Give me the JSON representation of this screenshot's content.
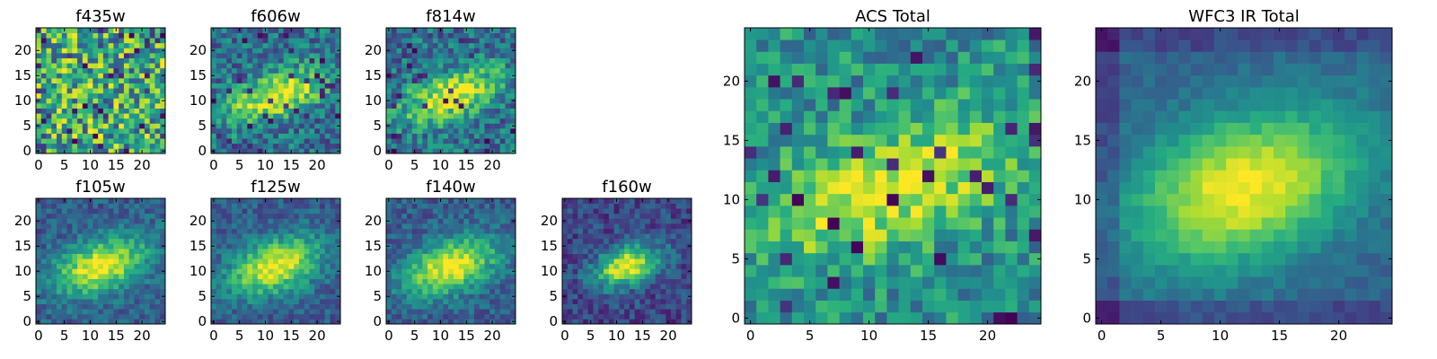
{
  "chart_data": [
    {
      "type": "heatmap",
      "title": "f435w",
      "xticks": [
        "0",
        "5",
        "10",
        "15",
        "20"
      ],
      "yticks": [
        "0",
        "5",
        "10",
        "15",
        "20"
      ],
      "xlim": [
        0,
        24
      ],
      "ylim": [
        0,
        24
      ],
      "grid": false,
      "colormap": "viridis",
      "values": "25x25 noisy flux image, mostly bright with scattered dark pixels"
    },
    {
      "type": "heatmap",
      "title": "f606w",
      "xticks": [
        "0",
        "5",
        "10",
        "15",
        "20"
      ],
      "yticks": [
        "0",
        "5",
        "10",
        "15",
        "20"
      ],
      "xlim": [
        0,
        24
      ],
      "ylim": [
        0,
        24
      ],
      "grid": false,
      "colormap": "viridis",
      "values": "25x25 flux image, diagonal bright band centered near (12, 11)"
    },
    {
      "type": "heatmap",
      "title": "f814w",
      "xticks": [
        "0",
        "5",
        "10",
        "15",
        "20"
      ],
      "yticks": [
        "0",
        "5",
        "10",
        "15",
        "20"
      ],
      "xlim": [
        0,
        24
      ],
      "ylim": [
        0,
        24
      ],
      "grid": false,
      "colormap": "viridis",
      "values": "25x25 flux image, diagonal bright band centered near (12, 11)"
    },
    {
      "type": "heatmap",
      "title": "f105w",
      "xticks": [
        "0",
        "5",
        "10",
        "15",
        "20"
      ],
      "yticks": [
        "0",
        "5",
        "10",
        "15",
        "20"
      ],
      "xlim": [
        0,
        24
      ],
      "ylim": [
        0,
        24
      ],
      "grid": false,
      "colormap": "viridis",
      "values": "25x25 flux image, bright elongated source centered near (12, 11)"
    },
    {
      "type": "heatmap",
      "title": "f125w",
      "xticks": [
        "0",
        "5",
        "10",
        "15",
        "20"
      ],
      "yticks": [
        "0",
        "5",
        "10",
        "15",
        "20"
      ],
      "xlim": [
        0,
        24
      ],
      "ylim": [
        0,
        24
      ],
      "grid": false,
      "colormap": "viridis",
      "values": "25x25 flux image, bright elongated source centered near (12, 11)"
    },
    {
      "type": "heatmap",
      "title": "f140w",
      "xticks": [
        "0",
        "5",
        "10",
        "15",
        "20"
      ],
      "yticks": [
        "0",
        "5",
        "10",
        "15",
        "20"
      ],
      "xlim": [
        0,
        24
      ],
      "ylim": [
        0,
        24
      ],
      "grid": false,
      "colormap": "viridis",
      "values": "25x25 flux image, bright elongated source centered near (12, 11)"
    },
    {
      "type": "heatmap",
      "title": "f160w",
      "xticks": [
        "0",
        "5",
        "10",
        "15",
        "20"
      ],
      "yticks": [
        "0",
        "5",
        "10",
        "15",
        "20"
      ],
      "xlim": [
        0,
        24
      ],
      "ylim": [
        0,
        24
      ],
      "grid": false,
      "colormap": "viridis",
      "values": "25x25 flux image, compact bright source centered near (12, 11)"
    },
    {
      "type": "heatmap",
      "title": "ACS Total",
      "xticks": [
        "0",
        "5",
        "10",
        "15",
        "20"
      ],
      "yticks": [
        "0",
        "5",
        "10",
        "15",
        "20"
      ],
      "xlim": [
        0,
        24
      ],
      "ylim": [
        0,
        24
      ],
      "grid": false,
      "colormap": "viridis",
      "values": "25x25 summed ACS flux image, diagonal bright band"
    },
    {
      "type": "heatmap",
      "title": "WFC3 IR Total",
      "xticks": [
        "0",
        "5",
        "10",
        "15",
        "20"
      ],
      "yticks": [
        "0",
        "5",
        "10",
        "15",
        "20"
      ],
      "xlim": [
        0,
        24
      ],
      "ylim": [
        0,
        24
      ],
      "grid": false,
      "colormap": "viridis",
      "values": "25x25 summed IR flux image, smooth elongated source centered near (13, 11)"
    }
  ]
}
